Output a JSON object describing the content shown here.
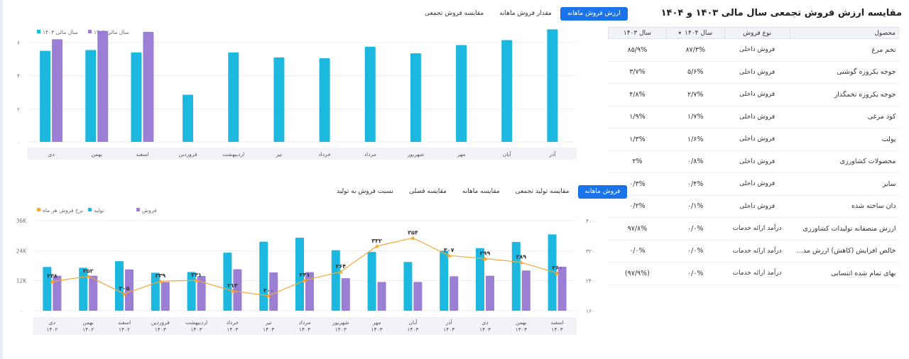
{
  "table_panel": {
    "title": "مقایسه ارزش فروش تجمعی سال مالی ۱۴۰۳ و ۱۴۰۴",
    "headers": {
      "product": "محصول",
      "sale_type": "نوع فروش",
      "y1404": "سال ۱۴۰۴",
      "y1403": "سال ۱۴۰۳"
    },
    "rows": [
      {
        "product": "تخم مرغ",
        "type": "فروش داخلی",
        "y1404": "۸۷/۳%",
        "y1403": "۸۵/۹%"
      },
      {
        "product": "جوجه یکروزه گوشتی",
        "type": "فروش داخلی",
        "y1404": "۵/۶%",
        "y1403": "۳/۷%"
      },
      {
        "product": "جوجه یکروزه تخمگذار",
        "type": "فروش داخلی",
        "y1404": "۲/۷%",
        "y1403": "۴/۸%"
      },
      {
        "product": "کود مرغی",
        "type": "فروش داخلی",
        "y1404": "۱/۷%",
        "y1403": "۱/۹%"
      },
      {
        "product": "پولت",
        "type": "فروش داخلی",
        "y1404": "۱/۶%",
        "y1403": "۱/۳%"
      },
      {
        "product": "محصولات کشاورزی",
        "type": "فروش داخلی",
        "y1404": "۰/۸%",
        "y1403": "۲%"
      },
      {
        "product": "سایر",
        "type": "فروش داخلی",
        "y1404": "۰/۴%",
        "y1403": "۰/۳%"
      },
      {
        "product": "دان ساخته شده",
        "type": "فروش داخلی",
        "y1404": "۰/۱%",
        "y1403": "۰/۲%"
      },
      {
        "product": "ارزش منصفانه تولیدات کشاورزی",
        "type": "درآمد ارائه خدمات",
        "y1404": "۰/۰%",
        "y1403": "۹۷/۸%"
      },
      {
        "product": "خالص افزایش (کاهش) ارزش مذ...",
        "type": "درآمد ارائه خدمات",
        "y1404": "۰/۰%",
        "y1403": "۰/۰%"
      },
      {
        "product": "بهای تمام شده انتسابی",
        "type": "درآمد ارائه خدمات",
        "y1404": "۰/۰%",
        "y1403": "(۹۷/۹%)"
      }
    ]
  },
  "top_tabs": [
    "ارزش فروش ماهانه",
    "مقدار فروش ماهانه",
    "مقایسه فروش تجمعی"
  ],
  "bottom_tabs": [
    "فروش ماهانه",
    "مقایسه تولید تجمعی",
    "مقایسه ماهانه",
    "مقایسه فصلی",
    "نسبت فروش به تولید"
  ],
  "colors": {
    "cyan": "#1cb8e0",
    "purple": "#9b7fd4",
    "orange": "#f6a735",
    "accent": "#1a73e8"
  },
  "chart_data": [
    {
      "type": "bar",
      "categories": [
        "آذر",
        "آبان",
        "مهر",
        "شهریور",
        "مرداد",
        "خرداد",
        "تیر",
        "اردیبهشت",
        "فروردین",
        "اسفند",
        "بهمن",
        "دی"
      ],
      "series": [
        {
          "name": "سال مالی ۱۴۰۳",
          "color": "#1cb8e0",
          "values": [
            6.8,
            6.15,
            5.85,
            5.35,
            5.75,
            5.05,
            5.1,
            5.4,
            2.85,
            5.4,
            5.55,
            5.5
          ]
        },
        {
          "name": "سال مالی ۱۴۰۴",
          "color": "#9b7fd4",
          "values": [
            null,
            null,
            null,
            null,
            null,
            null,
            null,
            null,
            null,
            6.65,
            6.7,
            6.2
          ]
        }
      ],
      "y_ticks": [
        "۰",
        "۲",
        "۴",
        "۶"
      ],
      "ylim": [
        0,
        6
      ],
      "legend_position": "top-left"
    },
    {
      "type": "bar",
      "categories": [
        {
          "m": "اسفند",
          "y": "۱۴۰۳"
        },
        {
          "m": "بهمن",
          "y": "۱۴۰۳"
        },
        {
          "m": "دی",
          "y": "۱۴۰۳"
        },
        {
          "m": "آذر",
          "y": "۱۴۰۳"
        },
        {
          "m": "آبان",
          "y": "۱۴۰۳"
        },
        {
          "m": "مهر",
          "y": "۱۴۰۳"
        },
        {
          "m": "شهریور",
          "y": "۱۴۰۳"
        },
        {
          "m": "مرداد",
          "y": "۱۴۰۳"
        },
        {
          "m": "تیر",
          "y": "۱۴۰۳"
        },
        {
          "m": "خرداد",
          "y": "۱۴۰۳"
        },
        {
          "m": "اردیبهشت",
          "y": "۱۴۰۳"
        },
        {
          "m": "فروردین",
          "y": "۱۴۰۳"
        },
        {
          "m": "اسفند",
          "y": "۱۴۰۲"
        },
        {
          "m": "بهمن",
          "y": "۱۴۰۲"
        },
        {
          "m": "دی",
          "y": "۱۴۰۲"
        }
      ],
      "series": [
        {
          "name": "تولید",
          "color": "#1cb8e0",
          "values": [
            30.5,
            27.5,
            25.0,
            24.0,
            19.5,
            23.5,
            24.2,
            29.2,
            27.6,
            23.2,
            15.5,
            15.2,
            19.8,
            17.2,
            17.5
          ]
        },
        {
          "name": "فروش",
          "color": "#9b7fd4",
          "values": [
            17.6,
            16.1,
            14.0,
            13.8,
            11.5,
            11.5,
            13.0,
            15.4,
            15.3,
            16.6,
            13.9,
            11.5,
            16.5,
            14.0,
            14.0
          ]
        },
        {
          "name": "نرخ فروش هر ماه",
          "color": "#f6a735",
          "values": [
            260,
            289,
            299,
            307,
            354,
            332,
            264,
            241,
            200,
            213,
            241,
            239,
            205,
            252,
            238
          ],
          "labels": [
            "۲۶۰",
            "۲۸۹",
            "۲۹۹",
            "۳۰۷",
            "۳۵۴",
            "۳۳۲",
            "۲۶۴",
            "۲۴۱",
            "۲۰۰",
            "۲۱۳",
            "۲۴۱",
            "۲۳۹",
            "۲۰۵",
            "۲۵۲",
            "۲۳۸"
          ]
        }
      ],
      "y_left_ticks": [
        "۰",
        "12K",
        "24K",
        "36K"
      ],
      "ylim_left": [
        0,
        36
      ],
      "y_right_ticks": [
        "۱۶۰",
        "۲۴۰",
        "۳۲۰",
        "۴۰۰"
      ],
      "ylim_right": [
        160,
        400
      ],
      "legend_position": "top-left"
    }
  ]
}
